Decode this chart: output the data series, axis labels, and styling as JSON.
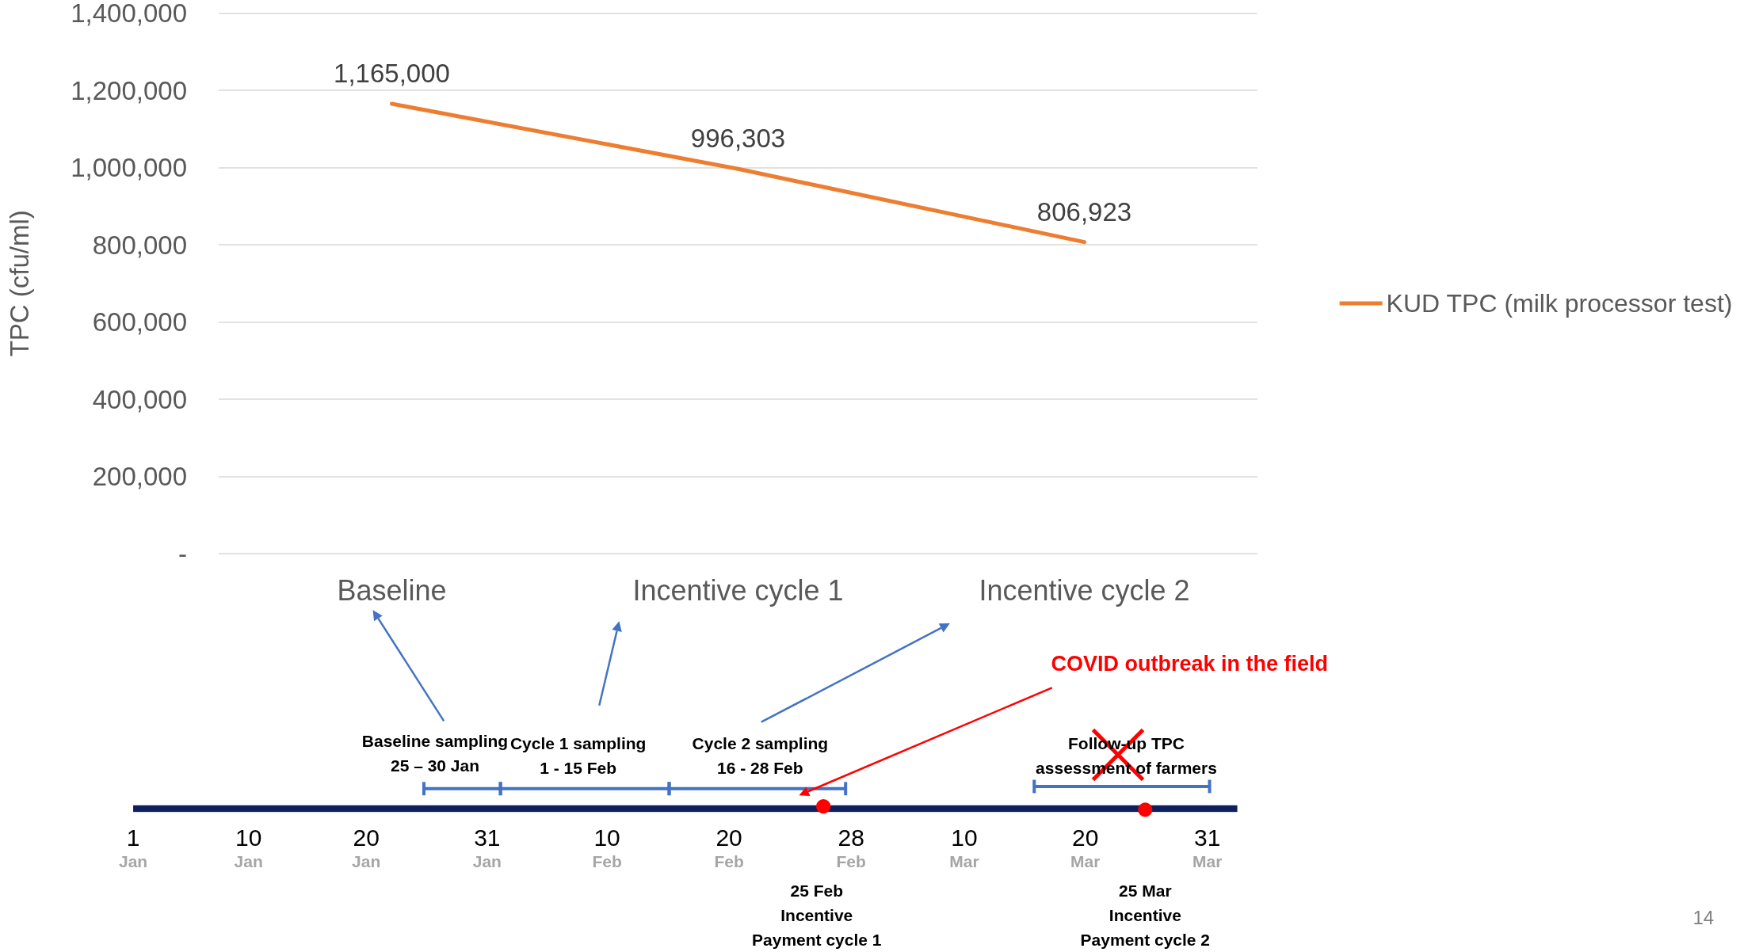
{
  "chart_data": {
    "type": "line",
    "ylabel": "TPC (cfu/ml)",
    "categories": [
      "Baseline",
      "Incentive cycle 1",
      "Incentive cycle 2"
    ],
    "series": [
      {
        "name": "KUD TPC (milk processor test)",
        "color": "#ed7d31",
        "values": [
          1165000,
          996303,
          806923
        ],
        "value_labels": [
          "1,165,000",
          "996,303",
          "806,923"
        ]
      }
    ],
    "ylim": [
      0,
      1400000
    ],
    "yticks": [
      {
        "value": 0,
        "label": "-"
      },
      {
        "value": 200000,
        "label": "200,000"
      },
      {
        "value": 400000,
        "label": "400,000"
      },
      {
        "value": 600000,
        "label": "600,000"
      },
      {
        "value": 800000,
        "label": "800,000"
      },
      {
        "value": 1000000,
        "label": "1,000,000"
      },
      {
        "value": 1200000,
        "label": "1,200,000"
      },
      {
        "value": 1400000,
        "label": "1,400,000"
      }
    ],
    "grid": "y",
    "legend": "right",
    "marker": "none",
    "annotations": [
      "Baseline sampling\n25 – 30 Jan",
      "Cycle 1 sampling\n1 - 15 Feb",
      "Cycle 2 sampling\n16 - 28 Feb",
      "Follow-up TPC\nassessment of farmers",
      "COVID outbreak in the field",
      "25 Feb\nIncentive\nPayment cycle 1",
      "25 Mar\nIncentive\nPayment cycle 2",
      "1\nJan",
      "10\nJan",
      "20\nJan",
      "31\nJan",
      "10\nFeb",
      "20\nFeb",
      "28\nFeb",
      "10\nMar",
      "20\nMar",
      "31\nMar",
      "14"
    ]
  }
}
